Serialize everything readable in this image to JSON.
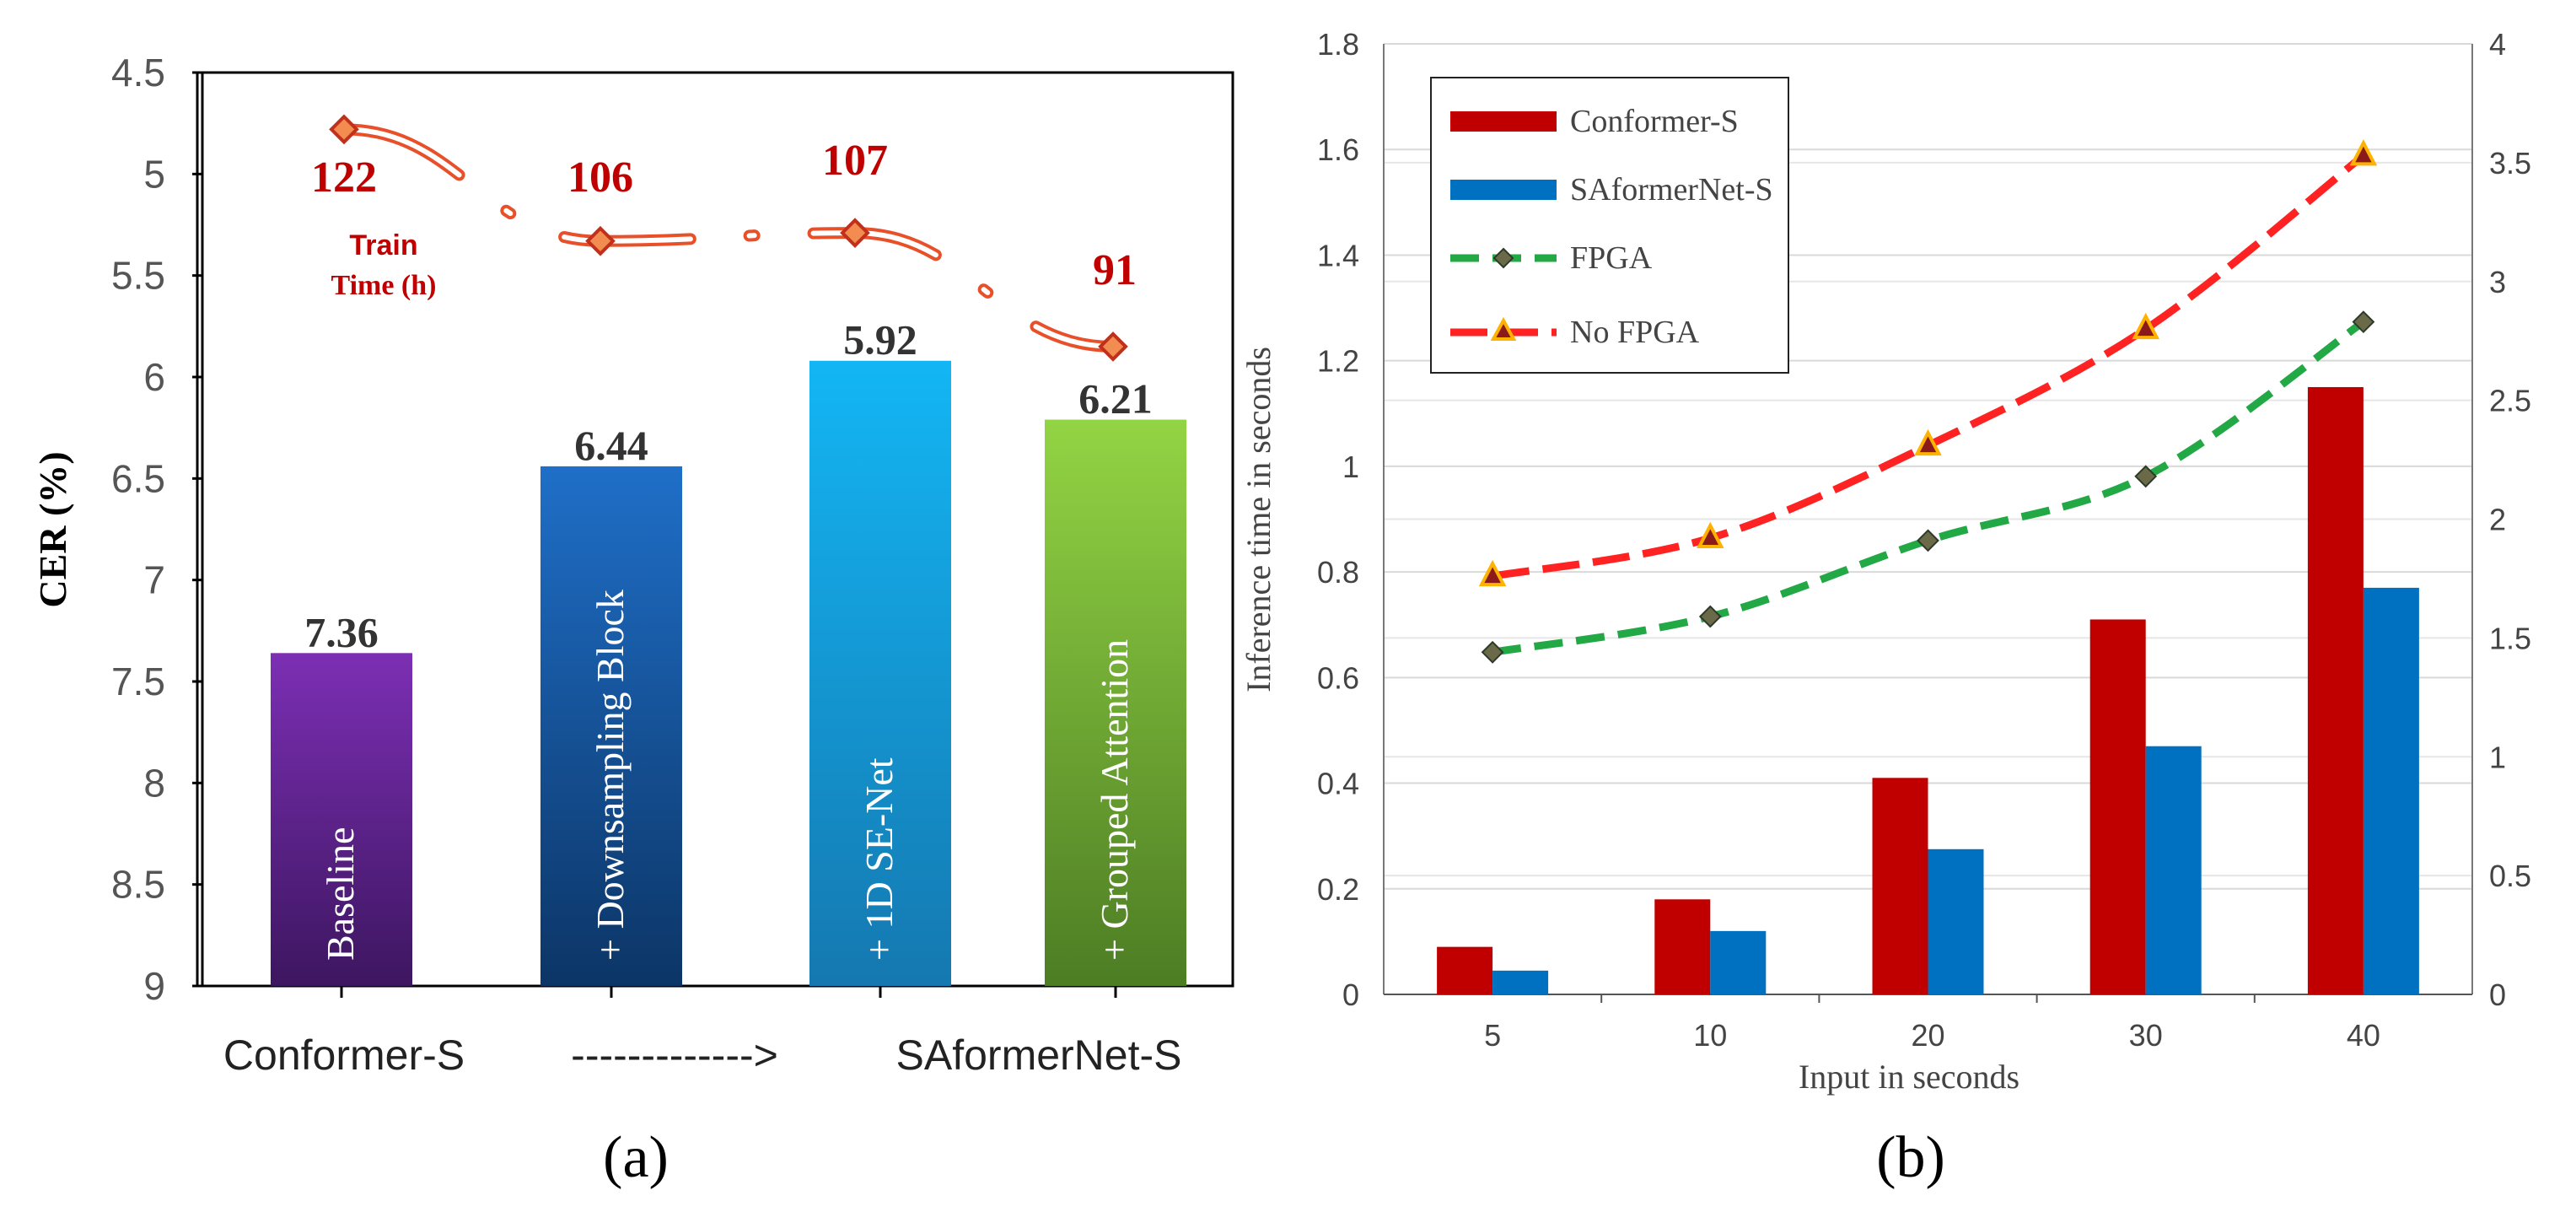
{
  "chart_data": [
    {
      "type": "bar",
      "panel_label": "(a)",
      "ylabel": "CER (%)",
      "ylim": [
        4.5,
        9
      ],
      "y_inverted": true,
      "yticks": [
        "4.5",
        "5",
        "5.5",
        "6",
        "6.5",
        "7",
        "7.5",
        "8",
        "8.5",
        "9"
      ],
      "xaxis_caption": {
        "left": "Conformer-S",
        "arrow": "------------->",
        "right": "SAformerNet-S"
      },
      "bars": [
        {
          "label": "Baseline",
          "value": 7.36,
          "value_label": "7.36",
          "color_top": "#7c2fb4",
          "color_bottom": "#3d1660"
        },
        {
          "label": "+ Downsampling Block",
          "value": 6.44,
          "value_label": "6.44",
          "color_top": "#1f6fc8",
          "color_bottom": "#0c3566"
        },
        {
          "label": "+ 1D SE-Net",
          "value": 5.92,
          "value_label": "5.92",
          "color_top": "#13b6f4",
          "color_bottom": "#1578b0"
        },
        {
          "label": "+ Grouped Attention",
          "value": 6.21,
          "value_label": "6.21",
          "color_top": "#93d444",
          "color_bottom": "#4d7d24"
        }
      ],
      "train_time": {
        "annotation_line1": "Train",
        "annotation_line2": "Time (h)",
        "values": [
          122,
          106,
          107,
          91
        ],
        "labels": [
          "122",
          "106",
          "107",
          "91"
        ],
        "marker_y_cer": [
          4.78,
          5.33,
          5.29,
          5.85
        ],
        "color": "#e8502a",
        "label_color": "#c00000"
      }
    },
    {
      "type": "bar+line",
      "panel_label": "(b)",
      "xlabel": "Input in seconds",
      "ylabel": "Inference time in seconds",
      "categories": [
        "5",
        "10",
        "20",
        "30",
        "40"
      ],
      "ylim": [
        0,
        1.8
      ],
      "yticks": [
        "0",
        "0.2",
        "0.4",
        "0.6",
        "0.8",
        "1",
        "1.2",
        "1.4",
        "1.6",
        "1.8"
      ],
      "y2lim": [
        0,
        4
      ],
      "y2ticks": [
        "0",
        "0.5",
        "1",
        "1.5",
        "2",
        "2.5",
        "3",
        "3.5",
        "4"
      ],
      "series": [
        {
          "name": "Conformer-S",
          "kind": "bar",
          "axis": "left",
          "color": "#c00000",
          "values": [
            0.09,
            0.18,
            0.41,
            0.71,
            1.15
          ]
        },
        {
          "name": "SAformerNet-S",
          "kind": "bar",
          "axis": "left",
          "color": "#0070c0",
          "values": [
            0.045,
            0.12,
            0.275,
            0.47,
            0.77
          ]
        },
        {
          "name": "FPGA",
          "kind": "line",
          "axis": "right",
          "color": "#22a844",
          "values": [
            1.44,
            1.59,
            1.91,
            2.18,
            2.83
          ]
        },
        {
          "name": "No FPGA",
          "kind": "line",
          "axis": "right",
          "color": "#ff2222",
          "values": [
            1.76,
            1.92,
            2.31,
            2.8,
            3.53
          ]
        }
      ],
      "legend_position": "top-left"
    }
  ]
}
